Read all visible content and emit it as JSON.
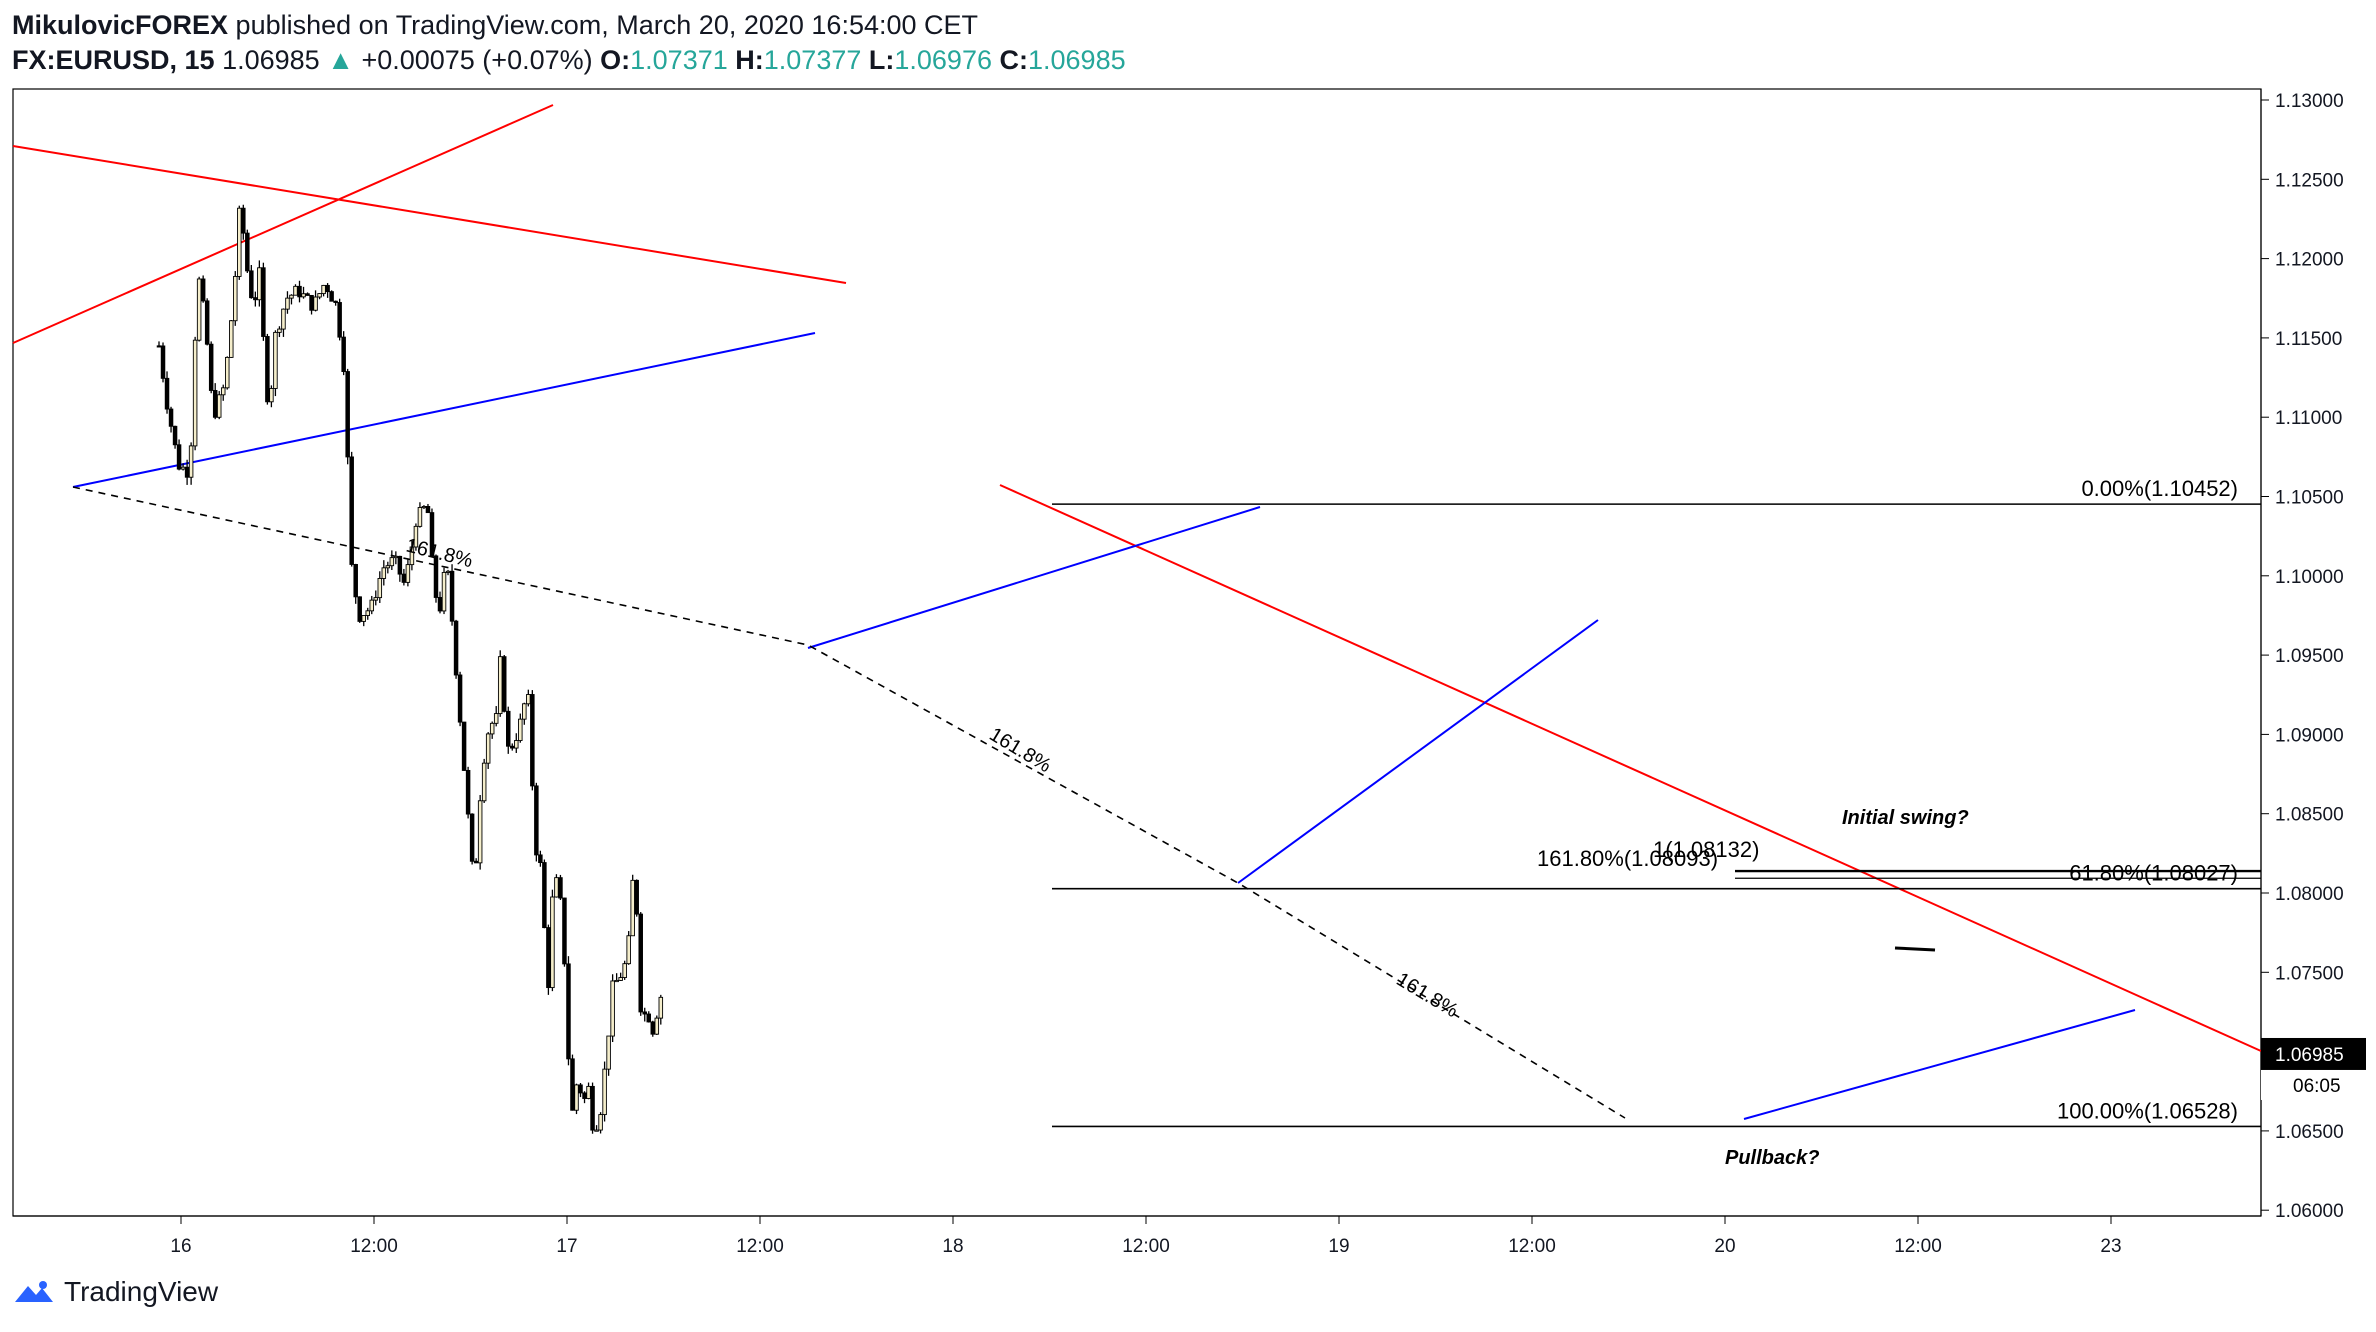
{
  "header": {
    "author": "MikulovicFOREX",
    "published": " published on TradingView.com, March 20, 2020 16:54:00 CET",
    "symbol": "FX:EURUSD, 15",
    "last": "1.06985",
    "change": "+0.00075 (+0.07%)",
    "o_label": "O:",
    "o_value": "1.07371",
    "h_label": "H:",
    "h_value": "1.07377",
    "l_label": "L:",
    "l_value": "1.06976",
    "c_label": "C:",
    "c_value": "1.06985"
  },
  "footer": {
    "brand": "TradingView",
    "logo_icon": "tradingview-logo-icon"
  },
  "colors": {
    "candle_up": "#f5eecb",
    "candle_down": "#000000",
    "wick": "#000000",
    "red_line": "#ff0000",
    "blue_line": "#0000ff",
    "up_text": "#26a69a"
  },
  "chart_data": {
    "type": "candlestick",
    "symbol": "FX:EURUSD",
    "timeframe": "15",
    "x_ticks": [
      "16",
      "12:00",
      "17",
      "12:00",
      "18",
      "12:00",
      "19",
      "12:00",
      "20",
      "12:00",
      "23"
    ],
    "y_ticks": [
      "1.13000",
      "1.12500",
      "1.12000",
      "1.11500",
      "1.11000",
      "1.10500",
      "1.10000",
      "1.09500",
      "1.09000",
      "1.08500",
      "1.08000",
      "1.07500",
      "1.06500",
      "1.06000"
    ],
    "ylim": [
      1.0595,
      1.1305
    ],
    "last_price_label": "1.06985",
    "countdown_label": "06:05",
    "price_path": [
      [
        0.0,
        1.1145
      ],
      [
        0.02,
        1.111
      ],
      [
        0.05,
        1.107
      ],
      [
        0.08,
        1.1065
      ],
      [
        0.1,
        1.1192
      ],
      [
        0.12,
        1.116
      ],
      [
        0.14,
        1.11
      ],
      [
        0.17,
        1.112
      ],
      [
        0.195,
        1.118
      ],
      [
        0.21,
        1.1235
      ],
      [
        0.23,
        1.119
      ],
      [
        0.245,
        1.117
      ],
      [
        0.26,
        1.119
      ],
      [
        0.27,
        1.115
      ],
      [
        0.285,
        1.11
      ],
      [
        0.3,
        1.115
      ],
      [
        0.33,
        1.1175
      ],
      [
        0.36,
        1.118
      ],
      [
        0.4,
        1.117
      ],
      [
        0.43,
        1.1185
      ],
      [
        0.46,
        1.117
      ],
      [
        0.48,
        1.113
      ],
      [
        0.5,
        1.1
      ],
      [
        0.52,
        1.0975
      ],
      [
        0.55,
        1.098
      ],
      [
        0.58,
        1.1005
      ],
      [
        0.61,
        1.101
      ],
      [
        0.635,
        1.0995
      ],
      [
        0.65,
        1.101
      ],
      [
        0.665,
        1.1035
      ],
      [
        0.695,
        1.1045
      ],
      [
        0.71,
        1.1
      ],
      [
        0.725,
        1.0975
      ],
      [
        0.745,
        1.101
      ],
      [
        0.76,
        1.097
      ],
      [
        0.78,
        1.091
      ],
      [
        0.8,
        1.085
      ],
      [
        0.815,
        1.0805
      ],
      [
        0.825,
        1.083
      ],
      [
        0.835,
        1.0875
      ],
      [
        0.855,
        1.0905
      ],
      [
        0.875,
        1.091
      ],
      [
        0.88,
        1.0955
      ],
      [
        0.89,
        1.093
      ],
      [
        0.905,
        1.089
      ],
      [
        0.92,
        1.0895
      ],
      [
        0.94,
        1.091
      ],
      [
        0.955,
        1.093
      ],
      [
        0.965,
        1.088
      ],
      [
        0.975,
        1.083
      ],
      [
        0.99,
        1.0815
      ],
      [
        1.0,
        1.077
      ],
      [
        1.01,
        1.074
      ],
      [
        1.02,
        1.08
      ],
      [
        1.035,
        1.081
      ],
      [
        1.05,
        1.076
      ],
      [
        1.06,
        1.07
      ],
      [
        1.07,
        1.066
      ],
      [
        1.085,
        1.0685
      ],
      [
        1.1,
        1.0665
      ],
      [
        1.11,
        1.0685
      ],
      [
        1.12,
        1.0655
      ],
      [
        1.14,
        1.0655
      ],
      [
        1.16,
        1.07
      ],
      [
        1.175,
        1.074
      ],
      [
        1.2,
        1.075
      ],
      [
        1.215,
        1.076
      ],
      [
        1.225,
        1.081
      ],
      [
        1.24,
        1.0785
      ],
      [
        1.25,
        1.0715
      ],
      [
        1.265,
        1.073
      ],
      [
        1.275,
        1.071
      ],
      [
        1.29,
        1.0725
      ],
      [
        1.3,
        1.0735
      ],
      [
        1.31,
        1.0698
      ]
    ],
    "annotations": {
      "fib_levels": [
        {
          "label": "0.00%(1.10452)",
          "price": 1.10452
        },
        {
          "label": "61.80%(1.08027)",
          "price": 1.08027
        },
        {
          "label": "100.00%(1.06528)",
          "price": 1.06528
        }
      ],
      "extension_labels": [
        "161.80%(1.08093)",
        "1(1.08132)"
      ],
      "projection_labels": [
        "161.8%",
        "161.8%",
        "161.8%"
      ],
      "notes": [
        "Initial swing?",
        "Pullback?"
      ]
    }
  }
}
